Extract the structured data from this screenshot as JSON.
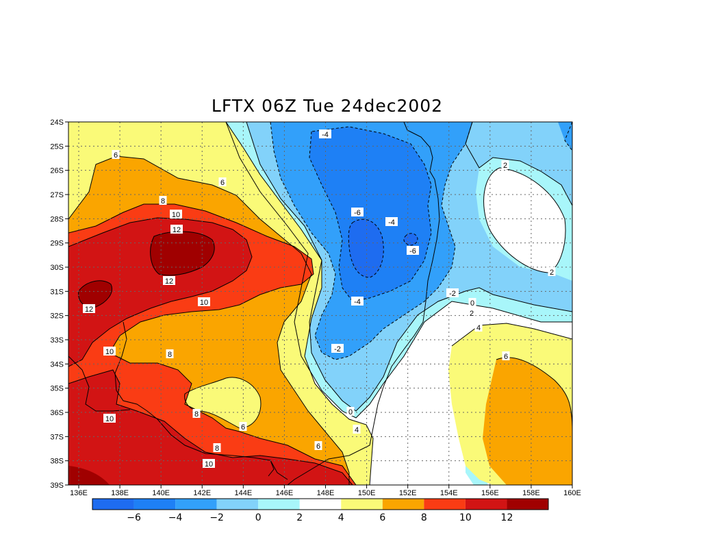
{
  "title": "LFTX 06Z Tue 24dec2002",
  "map": {
    "lon_range": [
      135.5,
      160
    ],
    "lat_range": [
      -39,
      -24
    ],
    "lon_ticks": [
      "136E",
      "138E",
      "140E",
      "142E",
      "144E",
      "146E",
      "148E",
      "150E",
      "152E",
      "154E",
      "156E",
      "158E",
      "160E"
    ],
    "lat_ticks": [
      "24S",
      "25S",
      "26S",
      "27S",
      "28S",
      "29S",
      "30S",
      "31S",
      "32S",
      "33S",
      "34S",
      "35S",
      "36S",
      "37S",
      "38S",
      "39S"
    ],
    "grid": "dotted"
  },
  "colors": {
    "lt_m6": "#1e6cf0",
    "m6_m4": "#1e80f5",
    "m4_m2": "#32a0fa",
    "m2_0": "#82d2fa",
    "0_2": "#a8f6fa",
    "2_4": "#ffffff",
    "4_6": "#fafa78",
    "6_8": "#faa500",
    "8_10": "#fa3c14",
    "10_12": "#d21414",
    "gt_12": "#a00000"
  },
  "colorbar": {
    "labels": [
      "−6",
      "−4",
      "−2",
      "0",
      "2",
      "4",
      "6",
      "8",
      "10",
      "12"
    ]
  },
  "contour_labels": [
    {
      "text": "-4"
    },
    {
      "text": "-6"
    },
    {
      "text": "-4"
    },
    {
      "text": "-6"
    },
    {
      "text": "-4"
    },
    {
      "text": "-2"
    },
    {
      "text": "-2"
    },
    {
      "text": "0"
    },
    {
      "text": "0"
    },
    {
      "text": "2"
    },
    {
      "text": "2"
    },
    {
      "text": "2"
    },
    {
      "text": "4"
    },
    {
      "text": "4"
    },
    {
      "text": "6"
    },
    {
      "text": "6"
    },
    {
      "text": "6"
    },
    {
      "text": "6"
    },
    {
      "text": "6"
    },
    {
      "text": "8"
    },
    {
      "text": "8"
    },
    {
      "text": "8"
    },
    {
      "text": "8"
    },
    {
      "text": "10"
    },
    {
      "text": "10"
    },
    {
      "text": "10"
    },
    {
      "text": "10"
    },
    {
      "text": "10"
    },
    {
      "text": "12"
    },
    {
      "text": "12"
    },
    {
      "text": "12"
    }
  ]
}
